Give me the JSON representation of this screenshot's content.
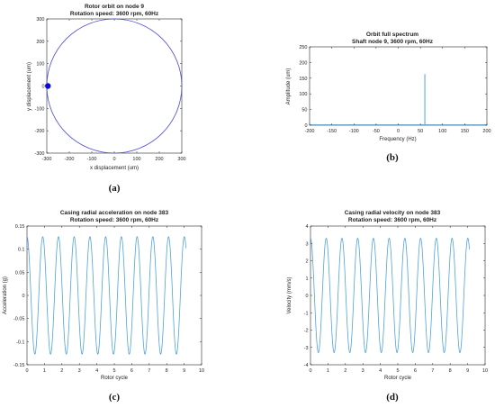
{
  "chart_data": [
    {
      "id": "a",
      "type": "line",
      "caption": "(a)",
      "title": "Rotor orbit on node 9",
      "subtitle": "Rotation speed: 3600 rpm, 60Hz",
      "xlabel": "x displacement (um)",
      "ylabel": "y displacement (um)",
      "xlim": [
        -300,
        300
      ],
      "ylim": [
        -300,
        300
      ],
      "xticks": [
        -300,
        -200,
        -100,
        0,
        100,
        200,
        300
      ],
      "yticks": [
        -300,
        -200,
        -100,
        0,
        100,
        200,
        300
      ],
      "series": [
        {
          "kind": "circle",
          "center": [
            0,
            0
          ],
          "radius": 300,
          "color": "#4b4bd6"
        },
        {
          "kind": "marker",
          "x": [
            -295
          ],
          "y": [
            0
          ],
          "color": "#0a0ad0"
        }
      ],
      "grid": false
    },
    {
      "id": "b",
      "type": "bar",
      "caption": "(b)",
      "title": "Orbit full spectrum",
      "subtitle": "Shaft node 9, 3600 rpm, 60Hz",
      "xlabel": "Frequency (Hz)",
      "ylabel": "Amplitude (um)",
      "xlim": [
        -200,
        200
      ],
      "ylim": [
        0,
        250
      ],
      "xticks": [
        -200,
        -150,
        -100,
        -50,
        0,
        50,
        100,
        150,
        200
      ],
      "yticks": [
        0,
        50,
        100,
        150,
        200,
        250
      ],
      "series": [
        {
          "x": [
            -60,
            60
          ],
          "y": [
            1,
            163
          ],
          "color": "#4fa3d9"
        }
      ],
      "grid": false
    },
    {
      "id": "c",
      "type": "line",
      "caption": "(c)",
      "title": "Casing radial acceleration on node 383",
      "subtitle": "Rotation speed: 3600 rpm, 60Hz",
      "xlabel": "Rotor cycle",
      "ylabel": "Acceleration (g)",
      "xlim": [
        0,
        10
      ],
      "ylim": [
        -0.15,
        0.15
      ],
      "xticks": [
        0,
        1,
        2,
        3,
        4,
        5,
        6,
        7,
        8,
        9,
        10
      ],
      "yticks": [
        -0.15,
        -0.1,
        -0.05,
        0,
        0.05,
        0.1,
        0.15
      ],
      "series": [
        {
          "kind": "sine",
          "amplitude": 0.127,
          "phase_cycles": 0.0,
          "x_start": 0,
          "x_end": 9.1,
          "color": "#4fa3d9"
        }
      ],
      "grid": false
    },
    {
      "id": "d",
      "type": "line",
      "caption": "(d)",
      "title": "Casing radial velocity on node 383",
      "subtitle": "Rotation speed: 3600 rpm, 60Hz",
      "xlabel": "Rotor cycle",
      "ylabel": "Velocity (mm/s)",
      "xlim": [
        0,
        10
      ],
      "ylim": [
        -4,
        4
      ],
      "xticks": [
        0,
        1,
        2,
        3,
        4,
        5,
        6,
        7,
        8,
        9,
        10
      ],
      "yticks": [
        -4,
        -3,
        -2,
        -1,
        0,
        1,
        2,
        3,
        4
      ],
      "series": [
        {
          "kind": "sine",
          "amplitude": 3.3,
          "phase_cycles": 0.0,
          "x_start": 0,
          "x_end": 9.1,
          "color": "#4fa3d9"
        }
      ],
      "grid": false
    }
  ]
}
